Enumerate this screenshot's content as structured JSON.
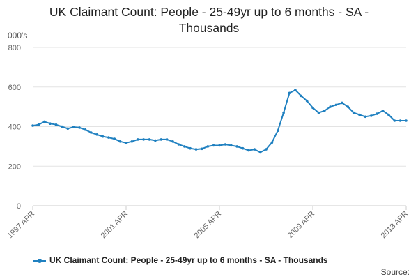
{
  "chart_data": {
    "type": "line",
    "title_line1": "UK Claimant Count: People - 25-49yr up to 6 months - SA -",
    "title_line2": "Thousands",
    "ylabel": "000's",
    "ylim": [
      0,
      800
    ],
    "yticks": [
      "0",
      "200",
      "400",
      "600",
      "800"
    ],
    "xticks": [
      "1997 APR",
      "2001 APR",
      "2005 APR",
      "2009 APR",
      "2013 APR"
    ],
    "xstart": "1997 APR",
    "xend": "2013 APR",
    "grid": "horizontal",
    "legend_position": "bottom",
    "series": [
      {
        "name": "UK Claimant Count: People - 25-49yr up to 6 months - SA - Thousands",
        "color": "#1f80c0",
        "x": [
          "1997 APR",
          "1997 JUL",
          "1997 OCT",
          "1998 JAN",
          "1998 APR",
          "1998 JUL",
          "1998 OCT",
          "1999 JAN",
          "1999 APR",
          "1999 JUL",
          "1999 OCT",
          "2000 JAN",
          "2000 APR",
          "2000 JUL",
          "2000 OCT",
          "2001 JAN",
          "2001 APR",
          "2001 JUL",
          "2001 OCT",
          "2002 JAN",
          "2002 APR",
          "2002 JUL",
          "2002 OCT",
          "2003 JAN",
          "2003 APR",
          "2003 JUL",
          "2003 OCT",
          "2004 JAN",
          "2004 APR",
          "2004 JUL",
          "2004 OCT",
          "2005 JAN",
          "2005 APR",
          "2005 JUL",
          "2005 OCT",
          "2006 JAN",
          "2006 APR",
          "2006 JUL",
          "2006 OCT",
          "2007 JAN",
          "2007 APR",
          "2007 JUL",
          "2007 OCT",
          "2008 JAN",
          "2008 APR",
          "2008 JUL",
          "2008 OCT",
          "2009 JAN",
          "2009 APR",
          "2009 JUL",
          "2009 OCT",
          "2010 JAN",
          "2010 APR",
          "2010 JUL",
          "2010 OCT",
          "2011 JAN",
          "2011 APR",
          "2011 JUL",
          "2011 OCT",
          "2012 JAN",
          "2012 APR",
          "2012 JUL",
          "2012 OCT",
          "2013 JAN",
          "2013 APR"
        ],
        "values": [
          405,
          410,
          425,
          415,
          410,
          400,
          390,
          398,
          395,
          385,
          370,
          360,
          350,
          345,
          338,
          325,
          318,
          325,
          335,
          335,
          335,
          330,
          335,
          335,
          325,
          310,
          300,
          290,
          285,
          288,
          300,
          305,
          305,
          310,
          305,
          300,
          290,
          280,
          285,
          270,
          285,
          320,
          380,
          470,
          570,
          585,
          555,
          530,
          495,
          470,
          480,
          500,
          510,
          520,
          500,
          470,
          460,
          450,
          455,
          465,
          480,
          460,
          430,
          430,
          430
        ]
      }
    ]
  },
  "source_label": "Source:"
}
